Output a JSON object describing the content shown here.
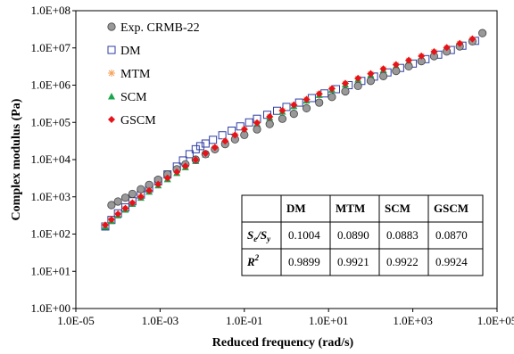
{
  "chart_data": {
    "type": "scatter",
    "xlabel": "Reduced frequency (rad/s)",
    "ylabel": "Complex modulus (Pa)",
    "xscale": "log",
    "yscale": "log",
    "xlim": [
      1e-05,
      100000.0
    ],
    "ylim": [
      1,
      100000000.0
    ],
    "x_tick_labels": [
      "1.0E-05",
      "1.0E-03",
      "1.0E-01",
      "1.0E+01",
      "1.0E+03",
      "1.0E+05"
    ],
    "y_tick_labels": [
      "1.0E+00",
      "1.0E+01",
      "1.0E+02",
      "1.0E+03",
      "1.0E+04",
      "1.0E+05",
      "1.0E+06",
      "1.0E+07",
      "1.0E+08"
    ],
    "grid": false,
    "legend_position": "top-left",
    "series": [
      {
        "name": "Exp. CRMB-22",
        "marker": "circle",
        "color": "#999999",
        "points": [
          [
            7e-05,
            600
          ],
          [
            0.0001,
            750
          ],
          [
            0.00015,
            950
          ],
          [
            0.00022,
            1200
          ],
          [
            0.00035,
            1600
          ],
          [
            0.00055,
            2100
          ],
          [
            0.0009,
            2900
          ],
          [
            0.0015,
            4000
          ],
          [
            0.0025,
            5500
          ],
          [
            0.004,
            7500
          ],
          [
            0.007,
            10000
          ],
          [
            0.012,
            14000
          ],
          [
            0.02,
            19000
          ],
          [
            0.035,
            26000
          ],
          [
            0.06,
            35000
          ],
          [
            0.1,
            46000
          ],
          [
            0.2,
            65000
          ],
          [
            0.4,
            90000
          ],
          [
            0.8,
            125000
          ],
          [
            1.5,
            170000
          ],
          [
            3,
            240000
          ],
          [
            6,
            340000
          ],
          [
            12,
            480000
          ],
          [
            25,
            680000
          ],
          [
            50,
            950000
          ],
          [
            100,
            1300000
          ],
          [
            200,
            1750000
          ],
          [
            400,
            2400000
          ],
          [
            800,
            3200000
          ],
          [
            1600,
            4400000
          ],
          [
            3200,
            6000000
          ],
          [
            6400,
            8000000
          ],
          [
            13000,
            11000000
          ],
          [
            26000,
            15000000
          ],
          [
            45000,
            25000000
          ]
        ]
      },
      {
        "name": "DM",
        "marker": "open-square",
        "color": "#2e3da3",
        "points": [
          [
            5e-05,
            160
          ],
          [
            7e-05,
            240
          ],
          [
            0.0001,
            360
          ],
          [
            0.00015,
            520
          ],
          [
            0.00022,
            760
          ],
          [
            0.00035,
            1150
          ],
          [
            0.00055,
            1700
          ],
          [
            0.0009,
            2600
          ],
          [
            0.0015,
            4000
          ],
          [
            0.0025,
            6500
          ],
          [
            0.0035,
            9500
          ],
          [
            0.005,
            14000
          ],
          [
            0.007,
            19000
          ],
          [
            0.009,
            23000
          ],
          [
            0.012,
            27000
          ],
          [
            0.018,
            34000
          ],
          [
            0.03,
            45000
          ],
          [
            0.05,
            60000
          ],
          [
            0.08,
            78000
          ],
          [
            0.13,
            100000
          ],
          [
            0.2,
            125000
          ],
          [
            0.35,
            160000
          ],
          [
            0.6,
            205000
          ],
          [
            1,
            260000
          ],
          [
            2,
            340000
          ],
          [
            4,
            450000
          ],
          [
            8,
            600000
          ],
          [
            15,
            780000
          ],
          [
            30,
            1000000
          ],
          [
            60,
            1300000
          ],
          [
            120,
            1700000
          ],
          [
            250,
            2200000
          ],
          [
            500,
            2900000
          ],
          [
            1000,
            3800000
          ],
          [
            2000,
            5000000
          ],
          [
            4000,
            6600000
          ],
          [
            8000,
            8800000
          ],
          [
            15000,
            11500000
          ],
          [
            30000,
            15500000
          ]
        ]
      },
      {
        "name": "MTM",
        "marker": "asterisk",
        "color": "#f4a259",
        "points": [
          [
            5e-05,
            170
          ],
          [
            7e-05,
            240
          ],
          [
            0.0001,
            340
          ],
          [
            0.00015,
            480
          ],
          [
            0.00022,
            680
          ],
          [
            0.00035,
            1000
          ],
          [
            0.00055,
            1450
          ],
          [
            0.0009,
            2150
          ],
          [
            0.0015,
            3150
          ],
          [
            0.0025,
            4600
          ],
          [
            0.004,
            6600
          ],
          [
            0.007,
            9800
          ],
          [
            0.012,
            14500
          ],
          [
            0.02,
            21000
          ],
          [
            0.035,
            31000
          ],
          [
            0.06,
            45000
          ],
          [
            0.1,
            64000
          ],
          [
            0.2,
            96000
          ],
          [
            0.4,
            140000
          ],
          [
            0.8,
            205000
          ],
          [
            1.5,
            290000
          ],
          [
            3,
            410000
          ],
          [
            6,
            580000
          ],
          [
            12,
            800000
          ],
          [
            25,
            1100000
          ],
          [
            50,
            1500000
          ],
          [
            100,
            2000000
          ],
          [
            200,
            2700000
          ],
          [
            400,
            3500000
          ],
          [
            800,
            4600000
          ],
          [
            1600,
            6000000
          ],
          [
            3200,
            7800000
          ],
          [
            6400,
            10000000
          ],
          [
            13000,
            13000000
          ],
          [
            26000,
            17000000
          ]
        ]
      },
      {
        "name": "SCM",
        "marker": "triangle",
        "color": "#1aa64a",
        "points": [
          [
            5e-05,
            160
          ],
          [
            7e-05,
            225
          ],
          [
            0.0001,
            320
          ],
          [
            0.00015,
            455
          ],
          [
            0.00022,
            650
          ],
          [
            0.00035,
            950
          ],
          [
            0.00055,
            1380
          ],
          [
            0.0009,
            2050
          ],
          [
            0.0015,
            3000
          ],
          [
            0.0025,
            4400
          ],
          [
            0.004,
            6300
          ],
          [
            0.007,
            9300
          ],
          [
            0.012,
            13800
          ],
          [
            0.02,
            20000
          ],
          [
            0.035,
            29500
          ],
          [
            0.06,
            43000
          ],
          [
            0.1,
            61000
          ],
          [
            0.2,
            92000
          ],
          [
            0.4,
            135000
          ],
          [
            0.8,
            195000
          ],
          [
            1.5,
            275000
          ],
          [
            3,
            390000
          ],
          [
            6,
            550000
          ],
          [
            12,
            760000
          ],
          [
            25,
            1050000
          ],
          [
            50,
            1420000
          ],
          [
            100,
            1900000
          ],
          [
            200,
            2550000
          ],
          [
            400,
            3300000
          ],
          [
            800,
            4300000
          ],
          [
            1600,
            5600000
          ],
          [
            3200,
            7200000
          ],
          [
            6400,
            9300000
          ],
          [
            13000,
            12000000
          ],
          [
            26000,
            15500000
          ]
        ]
      },
      {
        "name": "GSCM",
        "marker": "diamond",
        "color": "#e8131a",
        "points": [
          [
            5e-05,
            175
          ],
          [
            7e-05,
            245
          ],
          [
            0.0001,
            345
          ],
          [
            0.00015,
            490
          ],
          [
            0.00022,
            690
          ],
          [
            0.00035,
            1010
          ],
          [
            0.00055,
            1470
          ],
          [
            0.0009,
            2180
          ],
          [
            0.0015,
            3200
          ],
          [
            0.0025,
            4650
          ],
          [
            0.004,
            6700
          ],
          [
            0.007,
            9900
          ],
          [
            0.012,
            14700
          ],
          [
            0.02,
            21200
          ],
          [
            0.035,
            31500
          ],
          [
            0.06,
            45500
          ],
          [
            0.1,
            65000
          ],
          [
            0.2,
            97000
          ],
          [
            0.4,
            142000
          ],
          [
            0.8,
            208000
          ],
          [
            1.5,
            295000
          ],
          [
            3,
            415000
          ],
          [
            6,
            585000
          ],
          [
            12,
            810000
          ],
          [
            25,
            1120000
          ],
          [
            50,
            1520000
          ],
          [
            100,
            2030000
          ],
          [
            200,
            2730000
          ],
          [
            400,
            3550000
          ],
          [
            800,
            4650000
          ],
          [
            1600,
            6050000
          ],
          [
            3200,
            7900000
          ],
          [
            6400,
            10200000
          ],
          [
            13000,
            13200000
          ],
          [
            26000,
            17500000
          ]
        ]
      }
    ],
    "table": {
      "columns": [
        "",
        "DM",
        "MTM",
        "SCM",
        "GSCM"
      ],
      "rows": [
        {
          "label_main": "S",
          "label_sub1": "e",
          "label_sep": "/S",
          "label_sub2": "y",
          "values": [
            "0.1004",
            "0.0890",
            "0.0883",
            "0.0870"
          ]
        },
        {
          "label_main": "R",
          "label_sup": "2",
          "values": [
            "0.9899",
            "0.9921",
            "0.9922",
            "0.9924"
          ]
        }
      ]
    }
  }
}
